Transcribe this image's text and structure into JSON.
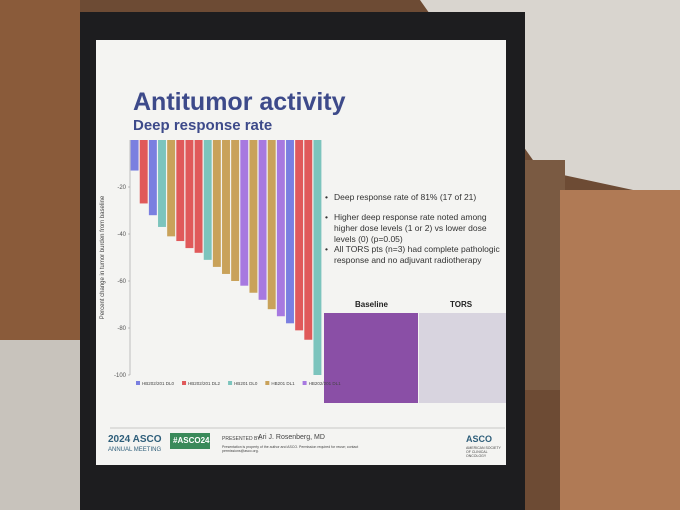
{
  "slide": {
    "title": "Antitumor activity",
    "subtitle": "Deep response rate",
    "bullets": [
      "Deep response rate of 81% (17 of 21)",
      "Higher deep response rate noted among higher dose levels (1 or 2) vs lower dose levels (0) (p=0.05)",
      "All TORS pts (n=3) had complete pathologic response and no adjuvant radiotherapy"
    ],
    "image_labels": [
      "Baseline",
      "TORS"
    ],
    "footer": {
      "meeting_year": "2024 ASCO",
      "meeting_name": "ANNUAL MEETING",
      "hashtag": "#ASCO24",
      "presented_by_label": "PRESENTED BY:",
      "presenter": "Ari J. Rosenberg, MD",
      "notice": "Presentation is property of the author and ASCO. Permission required for reuse; contact permissions@asco.org.",
      "logo": "ASCO",
      "logo_sub": "AMERICAN SOCIETY OF CLINICAL ONCOLOGY"
    }
  },
  "chart_data": {
    "type": "bar",
    "y_label": "Percent change in tumor burden from baseline",
    "values": [
      -13,
      -27,
      -32,
      -37,
      -41,
      -43,
      -46,
      -48,
      -51,
      -54,
      -57,
      -60,
      -62,
      -65,
      -68,
      -72,
      -75,
      -78,
      -81,
      -85,
      -100
    ],
    "bar_colors": [
      "#7a7fe0",
      "#e0595a",
      "#7a7fe0",
      "#7cc4bd",
      "#c9a25a",
      "#e0595a",
      "#e0595a",
      "#e0595a",
      "#7cc4bd",
      "#c9a25a",
      "#c9a25a",
      "#c9a25a",
      "#a779e0",
      "#c9a25a",
      "#a779e0",
      "#c9a25a",
      "#a779e0",
      "#7a7fe0",
      "#e0595a",
      "#e0595a",
      "#7cc4bd"
    ],
    "ylim": [
      -100,
      0
    ],
    "yticks": [
      -20,
      -40,
      -60,
      -80,
      -100
    ],
    "legend": [
      {
        "name": "HB202/201 DL0",
        "color": "#7a7fe0"
      },
      {
        "name": "HB202/201 DL2",
        "color": "#e0595a"
      },
      {
        "name": "HB201 DL0",
        "color": "#7cc4bd"
      },
      {
        "name": "HB201 DL1",
        "color": "#c9a25a"
      },
      {
        "name": "HB202/201 DL1",
        "color": "#a779e0"
      }
    ]
  }
}
